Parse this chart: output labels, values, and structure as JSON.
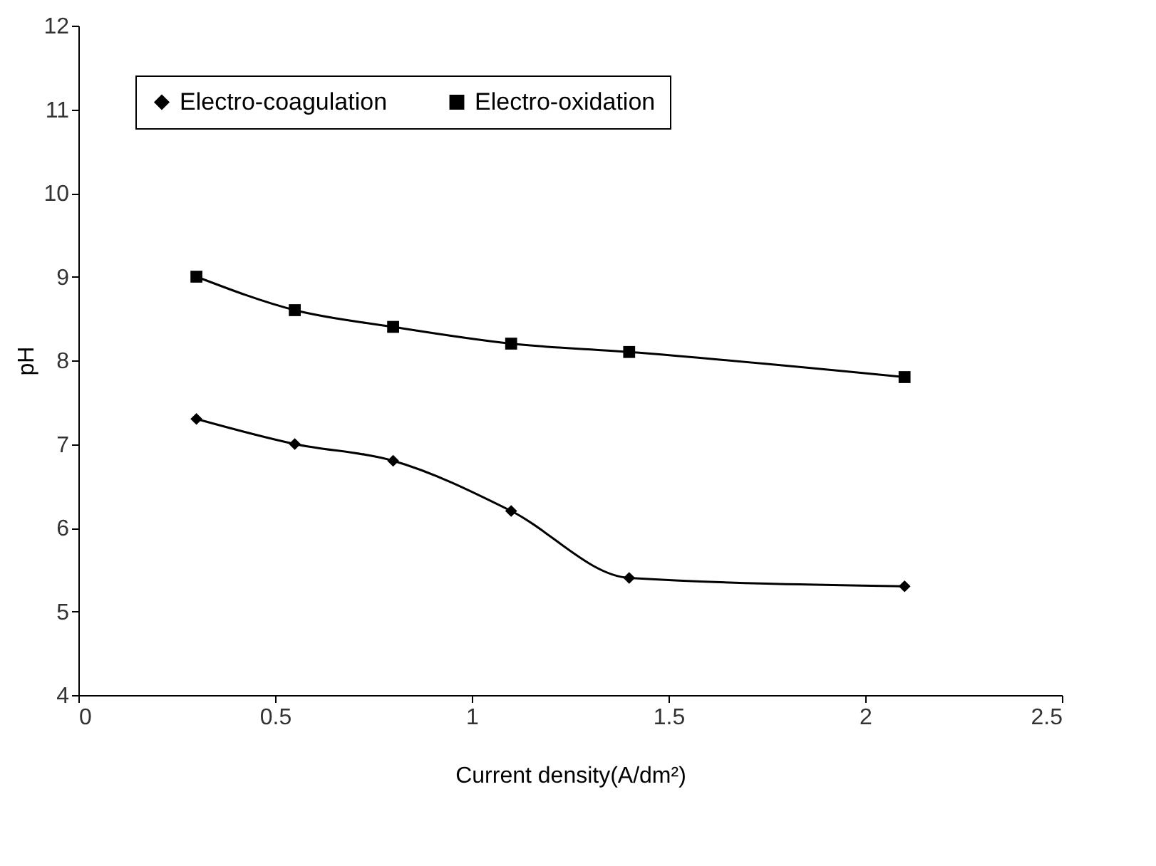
{
  "chart_data": {
    "type": "line",
    "xlabel": "Current density(A/dm²)",
    "ylabel": "pH",
    "x": [
      0.3,
      0.55,
      0.8,
      1.1,
      1.4,
      2.1
    ],
    "series": [
      {
        "name": "Electro-coagulation",
        "color": "#000000",
        "marker": "diamond",
        "values": [
          7.3,
          7.0,
          6.8,
          6.2,
          5.4,
          5.3
        ]
      },
      {
        "name": "Electro-oxidation",
        "color": "#000000",
        "marker": "square",
        "values": [
          9.0,
          8.6,
          8.4,
          8.2,
          8.1,
          7.8
        ]
      }
    ],
    "xlim": [
      0,
      2.5
    ],
    "xticks": [
      0,
      0.5,
      1,
      1.5,
      2,
      2.5
    ],
    "ylim": [
      4,
      12
    ],
    "yticks": [
      4,
      5,
      6,
      7,
      8,
      9,
      10,
      11,
      12
    ],
    "grid": false,
    "legend": "top",
    "line_style": "solid"
  }
}
